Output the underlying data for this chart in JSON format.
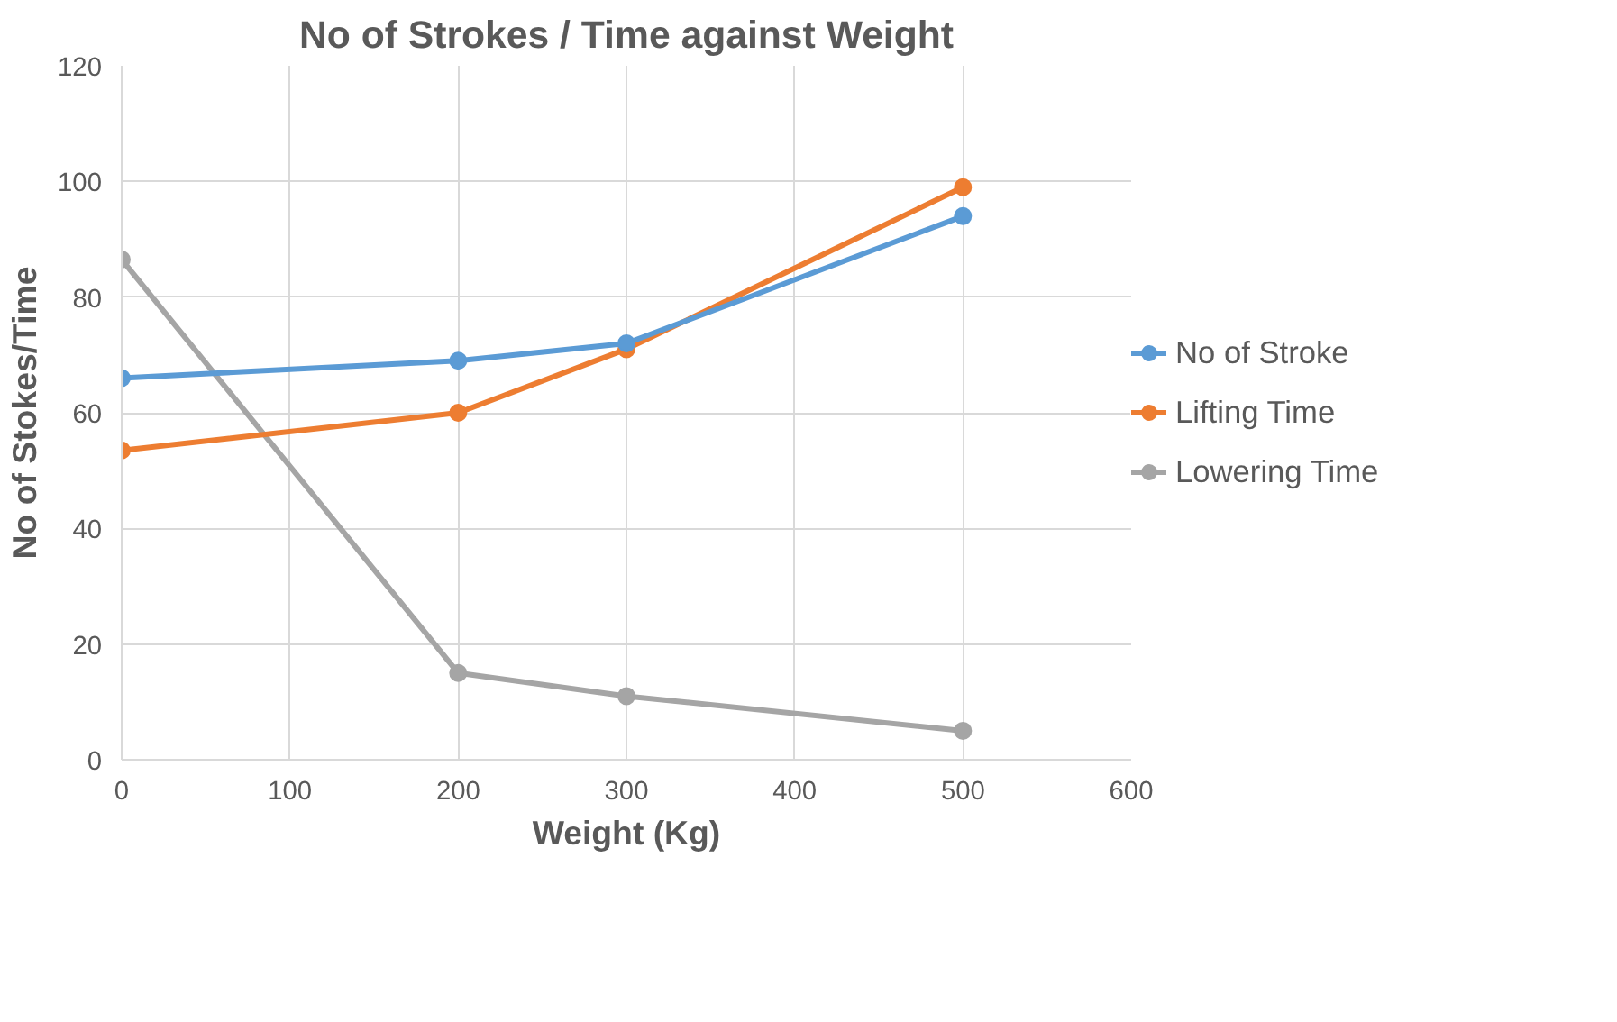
{
  "chart_data": {
    "type": "line",
    "title": "No of Strokes / Time against Weight",
    "xlabel": "Weight (Kg)",
    "ylabel": "No of Stokes/Time",
    "x": [
      0,
      200,
      300,
      500
    ],
    "series": [
      {
        "name": "No of Stroke",
        "color": "#5b9bd5",
        "values": [
          66,
          69,
          72,
          94
        ]
      },
      {
        "name": "Lifting Time",
        "color": "#ed7d31",
        "values": [
          53.5,
          60,
          71,
          99
        ]
      },
      {
        "name": "Lowering Time",
        "color": "#a5a5a5",
        "values": [
          86.5,
          15,
          11,
          5
        ]
      }
    ],
    "xlim": [
      0,
      600
    ],
    "xticks": [
      0,
      100,
      200,
      300,
      400,
      500,
      600
    ],
    "ylim": [
      0,
      120
    ],
    "yticks": [
      0,
      20,
      40,
      60,
      80,
      100,
      120
    ],
    "grid": true,
    "legend": "right",
    "marker": "circle",
    "line_style": "solid"
  }
}
